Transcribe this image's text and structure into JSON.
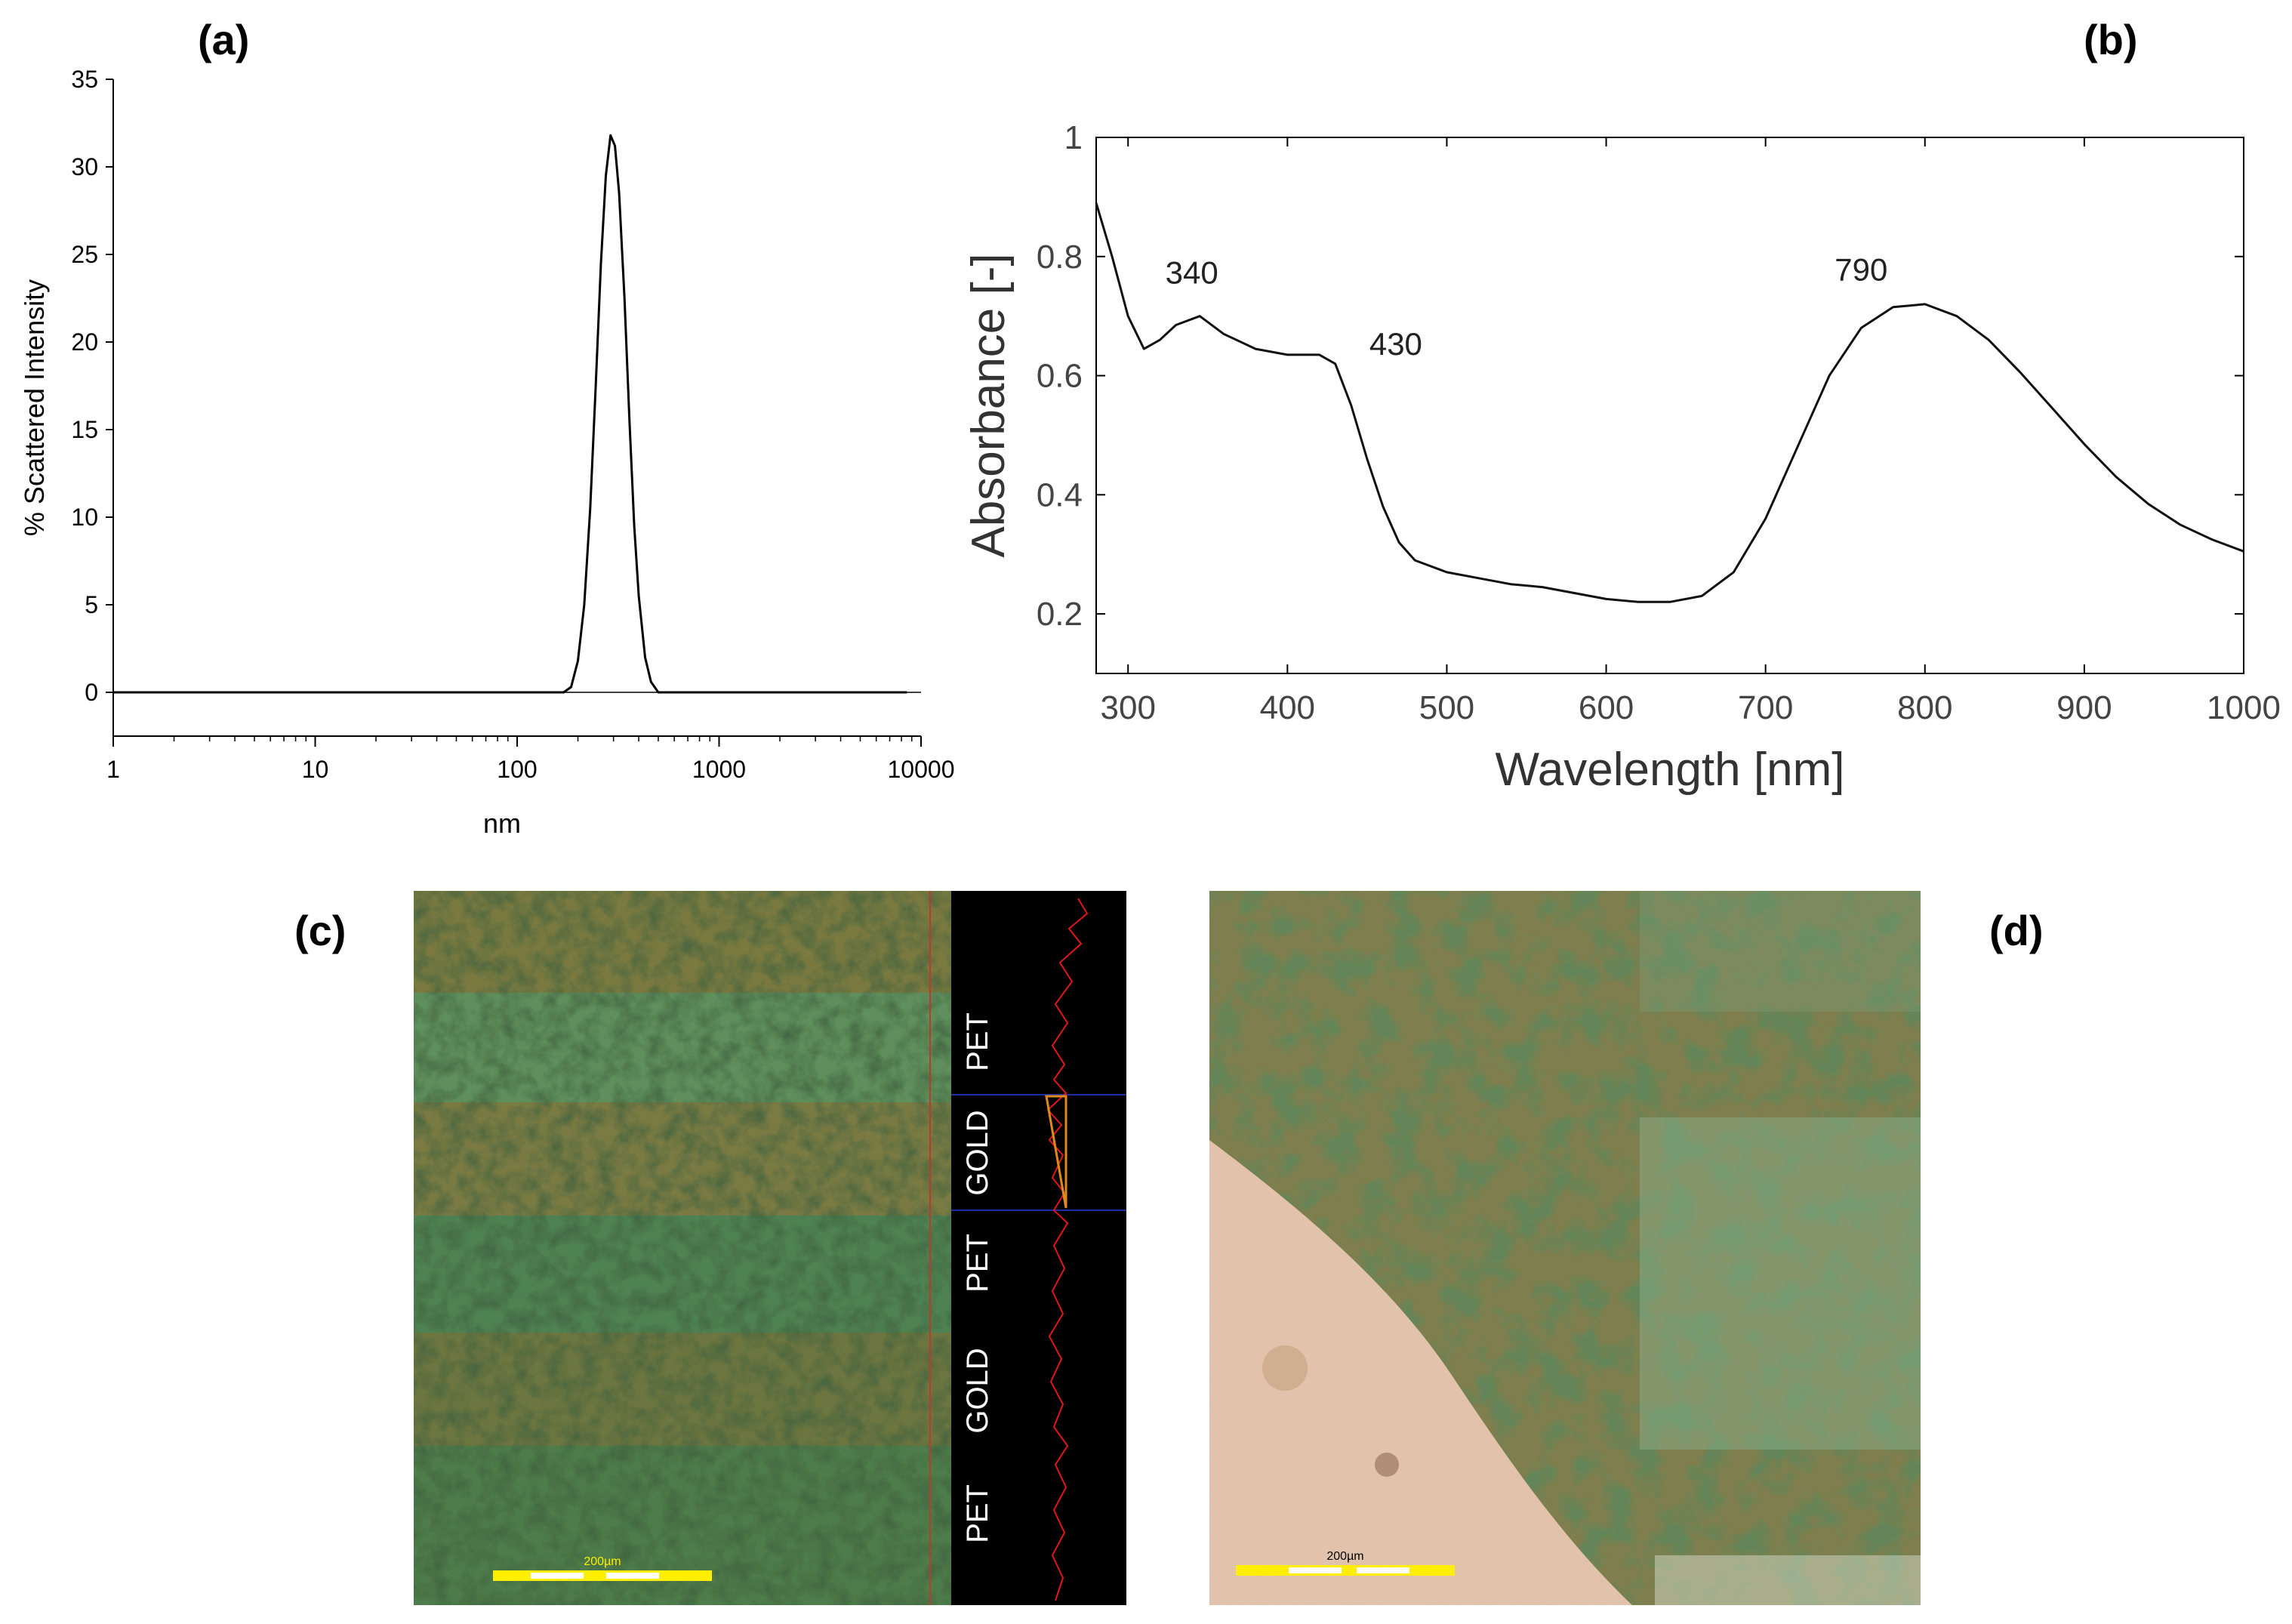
{
  "panels": {
    "a": {
      "label": "(a)",
      "chart_data": {
        "type": "line",
        "xlabel": "nm",
        "ylabel": "% Scattered Intensity",
        "x_scale": "log",
        "xlim": [
          1,
          10000
        ],
        "ylim": [
          -2.5,
          35
        ],
        "x_ticks": [
          1,
          10,
          100,
          1000,
          10000
        ],
        "x_tick_labels": [
          "1",
          "10",
          "100",
          "1000",
          "10000"
        ],
        "y_ticks": [
          0,
          5,
          10,
          15,
          20,
          25,
          30,
          35
        ],
        "y_tick_labels": [
          "0",
          "5",
          "10",
          "15",
          "20",
          "25",
          "30",
          "35"
        ],
        "series": [
          {
            "x": [
              1,
              10,
              100,
              170,
              185,
              200,
              215,
              230,
              245,
              260,
              275,
              290,
              305,
              320,
              340,
              360,
              380,
              400,
              430,
              460,
              500,
              1000,
              8500
            ],
            "y": [
              0,
              0,
              0,
              0,
              0.3,
              1.8,
              5.0,
              10.5,
              17.5,
              24.5,
              29.5,
              31.8,
              31.2,
              28.5,
              22.5,
              15.5,
              9.5,
              5.5,
              2.0,
              0.6,
              0,
              0,
              0
            ]
          }
        ]
      }
    },
    "b": {
      "label": "(b)",
      "chart_data": {
        "type": "line",
        "xlabel": "Wavelength [nm]",
        "ylabel": "Absorbance [-]",
        "xlim": [
          280,
          1000
        ],
        "ylim": [
          0.1,
          1.0
        ],
        "x_ticks": [
          300,
          400,
          500,
          600,
          700,
          800,
          900,
          1000
        ],
        "x_tick_labels": [
          "300",
          "400",
          "500",
          "600",
          "700",
          "800",
          "900",
          "1000"
        ],
        "y_ticks": [
          0.2,
          0.4,
          0.6,
          0.8,
          1.0
        ],
        "y_tick_labels": [
          "0.2",
          "0.4",
          "0.6",
          "0.8",
          "1"
        ],
        "annotations": [
          {
            "text": "340",
            "x": 340,
            "y": 0.755
          },
          {
            "text": "430",
            "x": 468,
            "y": 0.635
          },
          {
            "text": "790",
            "x": 760,
            "y": 0.76
          }
        ],
        "series": [
          {
            "x": [
              280,
              290,
              300,
              310,
              320,
              330,
              345,
              360,
              380,
              400,
              420,
              430,
              440,
              450,
              460,
              470,
              480,
              490,
              500,
              520,
              540,
              560,
              580,
              600,
              620,
              640,
              660,
              680,
              700,
              720,
              740,
              760,
              780,
              800,
              820,
              840,
              860,
              880,
              900,
              920,
              940,
              960,
              980,
              1000
            ],
            "y": [
              0.89,
              0.8,
              0.7,
              0.645,
              0.66,
              0.685,
              0.7,
              0.67,
              0.645,
              0.635,
              0.635,
              0.62,
              0.55,
              0.46,
              0.38,
              0.32,
              0.29,
              0.28,
              0.27,
              0.26,
              0.25,
              0.245,
              0.235,
              0.225,
              0.22,
              0.22,
              0.23,
              0.27,
              0.36,
              0.48,
              0.6,
              0.68,
              0.715,
              0.72,
              0.7,
              0.66,
              0.605,
              0.545,
              0.485,
              0.43,
              0.385,
              0.35,
              0.325,
              0.305
            ]
          }
        ]
      }
    },
    "c": {
      "label": "(c)",
      "scalebar": "200µm",
      "bands": [
        "PET",
        "GOLD",
        "PET",
        "GOLD",
        "PET"
      ]
    },
    "d": {
      "label": "(d)",
      "scalebar": "200µm"
    }
  }
}
